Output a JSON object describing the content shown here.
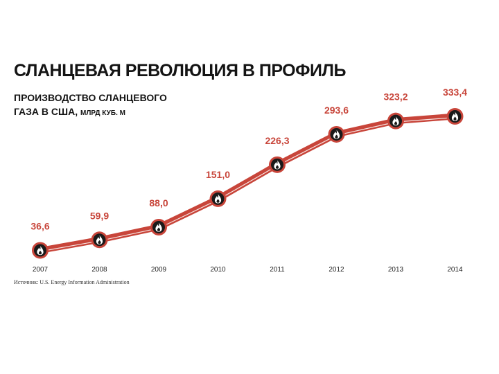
{
  "title": "СЛАНЦЕВАЯ РЕВОЛЮЦИЯ В ПРОФИЛЬ",
  "subtitle_line1": "ПРОИЗВОДСТВО СЛАНЦЕВОГО",
  "subtitle_line2": "ГАЗА В США,",
  "unit": "МЛРД КУБ. М",
  "source": "Источник: U.S. Energy Information Administration",
  "colors": {
    "line": "#c8453a",
    "marker": "#1a1a1a",
    "label": "#c8453a"
  },
  "chart_data": {
    "type": "line",
    "categories": [
      "2007",
      "2008",
      "2009",
      "2010",
      "2011",
      "2012",
      "2013",
      "2014"
    ],
    "values": [
      36.6,
      59.9,
      88.0,
      151.0,
      226.3,
      293.6,
      323.2,
      333.4
    ],
    "value_labels": [
      "36,6",
      "59,9",
      "88,0",
      "151,0",
      "226,3",
      "293,6",
      "323,2",
      "333,4"
    ],
    "marker_icon": "flame-icon",
    "grid": false,
    "xlabel": "",
    "ylabel": ""
  }
}
